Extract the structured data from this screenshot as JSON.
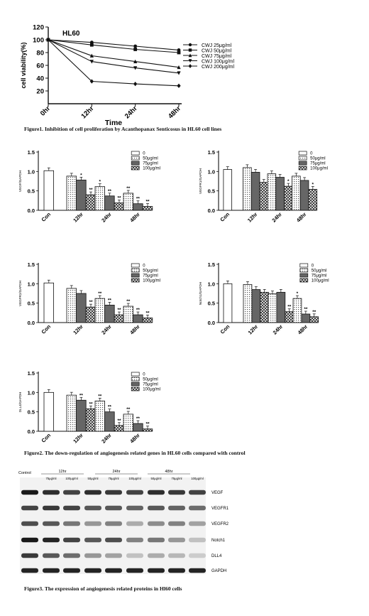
{
  "figure1": {
    "chart_data": {
      "type": "line",
      "title": "HL60",
      "xlabel": "Time",
      "ylabel": "cell viability(%)",
      "categories": [
        "0hr",
        "12hr",
        "24hr",
        "48hr"
      ],
      "yticks": [
        20,
        40,
        60,
        80,
        100,
        120
      ],
      "ylim": [
        0,
        120
      ],
      "series": [
        {
          "name": "CWJ 25μg/ml",
          "marker": "circle",
          "values": [
            100,
            96,
            90,
            84
          ]
        },
        {
          "name": "CWJ 50μg/ml",
          "marker": "square",
          "values": [
            100,
            92,
            85,
            80
          ]
        },
        {
          "name": "CWJ 75μg/ml",
          "marker": "triangle",
          "values": [
            100,
            75,
            66,
            57
          ]
        },
        {
          "name": "CWJ 100μg/ml",
          "marker": "tri-down",
          "values": [
            100,
            66,
            56,
            48
          ]
        },
        {
          "name": "CWJ 200μg/ml",
          "marker": "diamond",
          "values": [
            100,
            35,
            31,
            28
          ]
        }
      ]
    },
    "caption": "Figure1. Inhibition of cell proliferation by Acanthopanax Senticosus in HL60 cell lines"
  },
  "figure2": {
    "chart_data": [
      {
        "type": "bar",
        "ylabel": "VEGF/GAPDH",
        "categories": [
          "Con",
          "12hr",
          "24hr",
          "48hr"
        ],
        "yticks": [
          0.0,
          0.5,
          1.0,
          1.5
        ],
        "ylim": [
          0,
          1.5
        ],
        "legend": [
          "0",
          "50μg/ml",
          "75μg/ml",
          "100μg/ml"
        ],
        "control": 1.02,
        "groups": [
          {
            "values": [
              0.88,
              0.78,
              0.4
            ],
            "marks": [
              "",
              "*",
              "**"
            ]
          },
          {
            "values": [
              0.61,
              0.37,
              0.19
            ],
            "marks": [
              "*",
              "**",
              "**"
            ]
          },
          {
            "values": [
              0.44,
              0.17,
              0.1
            ],
            "marks": [
              "**",
              "**",
              "**"
            ]
          }
        ]
      },
      {
        "type": "bar",
        "ylabel": "VEGFR1/GAPDH",
        "categories": [
          "Con",
          "12hr",
          "24hr",
          "48hr"
        ],
        "yticks": [
          0.0,
          0.5,
          1.0,
          1.5
        ],
        "ylim": [
          0,
          1.5
        ],
        "legend": [
          "0",
          "50μg/ml",
          "75μg/ml",
          "100μg/ml"
        ],
        "control": 1.05,
        "groups": [
          {
            "values": [
              1.1,
              0.98,
              0.72
            ],
            "marks": [
              "",
              "",
              ""
            ]
          },
          {
            "values": [
              0.94,
              0.85,
              0.62
            ],
            "marks": [
              "",
              "",
              "*"
            ]
          },
          {
            "values": [
              0.88,
              0.77,
              0.54
            ],
            "marks": [
              "",
              "",
              "*"
            ]
          }
        ]
      },
      {
        "type": "bar",
        "ylabel": "VEGFR2/GAPDH",
        "categories": [
          "Con",
          "12hr",
          "24hr",
          "48hr"
        ],
        "yticks": [
          0.0,
          0.5,
          1.0,
          1.5
        ],
        "ylim": [
          0,
          1.5
        ],
        "legend": [
          "0",
          "50μg/ml",
          "75μg/ml",
          "100μg/ml"
        ],
        "control": 1.02,
        "groups": [
          {
            "values": [
              0.88,
              0.75,
              0.4
            ],
            "marks": [
              "",
              "",
              "**"
            ]
          },
          {
            "values": [
              0.62,
              0.45,
              0.2
            ],
            "marks": [
              "**",
              "**",
              "**"
            ]
          },
          {
            "values": [
              0.42,
              0.2,
              0.12
            ],
            "marks": [
              "**",
              "**",
              "**"
            ]
          }
        ]
      },
      {
        "type": "bar",
        "ylabel": "Notch1/GAPDH",
        "categories": [
          "Con",
          "12hr",
          "24hr",
          "48hr"
        ],
        "yticks": [
          0.0,
          0.5,
          1.0,
          1.5
        ],
        "ylim": [
          0,
          1.5
        ],
        "legend": [
          "0",
          "50μg/ml",
          "75μg/ml",
          "100μg/ml"
        ],
        "control": 1.0,
        "groups": [
          {
            "values": [
              0.98,
              0.85,
              0.78
            ],
            "marks": [
              "",
              "",
              ""
            ]
          },
          {
            "values": [
              0.74,
              0.78,
              0.28
            ],
            "marks": [
              "",
              "",
              "**"
            ]
          },
          {
            "values": [
              0.62,
              0.22,
              0.15
            ],
            "marks": [
              "*",
              "**",
              "**"
            ]
          }
        ]
      },
      {
        "type": "bar",
        "ylabel": "DLL4/GAPDH",
        "categories": [
          "Con",
          "12hr",
          "24hr",
          "48hr"
        ],
        "yticks": [
          0.0,
          0.5,
          1.0,
          1.5
        ],
        "ylim": [
          0,
          1.5
        ],
        "legend": [
          "0",
          "50μg/ml",
          "75μg/ml",
          "100μg/ml"
        ],
        "control": 1.0,
        "groups": [
          {
            "values": [
              0.93,
              0.8,
              0.58
            ],
            "marks": [
              "",
              "**",
              "**"
            ]
          },
          {
            "values": [
              0.78,
              0.5,
              0.15
            ],
            "marks": [
              "**",
              "**",
              "**"
            ]
          },
          {
            "values": [
              0.44,
              0.2,
              0.06
            ],
            "marks": [
              "**",
              "**",
              "**"
            ]
          }
        ]
      }
    ],
    "caption": "Figure2. The down-regulation of angiogenesis related genes in HL60 cells compared with control"
  },
  "figure3": {
    "headers": {
      "control": "Control",
      "groups": [
        "12hr",
        "24hr",
        "48hr"
      ],
      "doses": [
        "75μg/ml",
        "100μg/ml",
        "50μg/ml",
        "75μg/ml",
        "100μg/ml",
        "50μg/ml",
        "75μg/ml",
        "100μg/ml"
      ]
    },
    "rows": [
      {
        "label": "VEGF",
        "intensity": [
          1.0,
          0.9,
          0.8,
          0.9,
          0.85,
          0.8,
          0.9,
          0.85,
          0.8
        ]
      },
      {
        "label": "VEGFR1",
        "intensity": [
          0.8,
          0.85,
          0.8,
          0.7,
          0.7,
          0.65,
          0.7,
          0.65,
          0.6
        ]
      },
      {
        "label": "VEGFR2",
        "intensity": [
          0.75,
          0.7,
          0.55,
          0.4,
          0.5,
          0.3,
          0.45,
          0.5,
          0.35
        ]
      },
      {
        "label": "Notch1",
        "intensity": [
          1.0,
          0.95,
          0.8,
          0.7,
          0.75,
          0.5,
          0.55,
          0.4,
          0.2
        ]
      },
      {
        "label": "DLL4",
        "intensity": [
          0.85,
          0.7,
          0.6,
          0.4,
          0.35,
          0.2,
          0.3,
          0.25,
          0.15
        ]
      },
      {
        "label": "GAPDH",
        "intensity": [
          0.95,
          0.95,
          0.95,
          0.95,
          0.95,
          0.95,
          0.95,
          0.95,
          0.95
        ]
      }
    ],
    "caption": "Figure3. The expression of angiogenesis related proteins in Hl60 cells"
  }
}
